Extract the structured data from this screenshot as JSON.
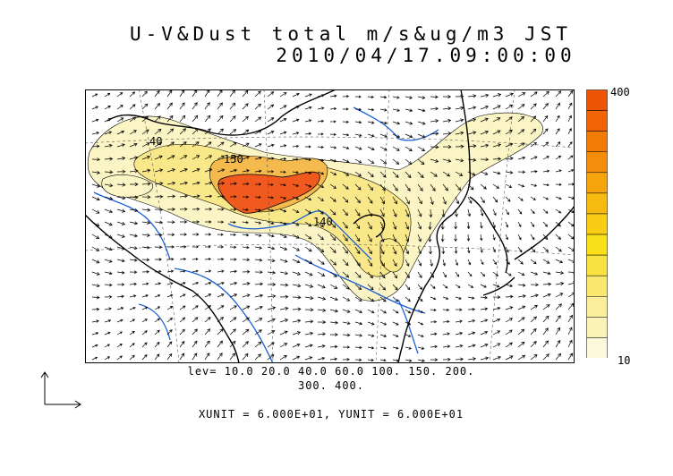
{
  "title": {
    "line1": "U-V&Dust total m/s&ug/m3 JST",
    "line2": "2010/04/17.09:00:00"
  },
  "colorbar": {
    "max_label": "400",
    "min_label": "10",
    "levels": [
      10,
      20,
      40,
      60,
      100,
      150,
      200,
      300,
      400
    ],
    "colors": [
      "#fcf8dc",
      "#fbf2b8",
      "#fbee9a",
      "#fae76f",
      "#f9e23f",
      "#f9df18",
      "#f8cd14",
      "#f6ba10",
      "#f5a40c",
      "#f48e0a",
      "#f27b08",
      "#f06406",
      "#ee5405"
    ]
  },
  "map": {
    "contour_labels": [
      "40",
      "150",
      "140"
    ],
    "land_color": "#ffffff",
    "dust_colors": {
      "low": "#fbf4c4",
      "mid": "#f9e88a",
      "high": "#f4ba4e",
      "peak": "#f05a1e"
    },
    "river_color": "#1a5fd6"
  },
  "captions": {
    "levels_line1": "lev= 10.0 20.0 40.0 60.0 100. 150. 200.",
    "levels_line2": "300. 400.",
    "units": "XUNIT = 6.000E+01, YUNIT = 6.000E+01"
  }
}
